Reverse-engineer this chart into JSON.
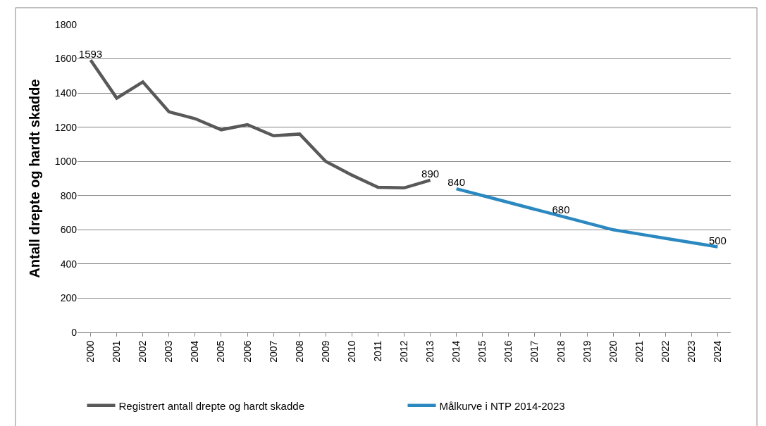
{
  "chart_data": {
    "type": "line",
    "ylabel": "Antall drepte og hardt skadde",
    "categories": [
      "2000",
      "2001",
      "2002",
      "2003",
      "2004",
      "2005",
      "2006",
      "2007",
      "2008",
      "2009",
      "2010",
      "2011",
      "2012",
      "2013",
      "2014",
      "2015",
      "2016",
      "2017",
      "2018",
      "2019",
      "2020",
      "2021",
      "2022",
      "2023",
      "2024"
    ],
    "series": [
      {
        "name": "Registrert antall drepte og hardt skadde",
        "color": "#595959",
        "values": [
          1593,
          1370,
          1465,
          1290,
          1250,
          1185,
          1215,
          1150,
          1160,
          1000,
          920,
          848,
          845,
          890,
          null,
          null,
          null,
          null,
          null,
          null,
          null,
          null,
          null,
          null,
          null
        ],
        "value_labels": [
          "1593",
          null,
          null,
          null,
          null,
          null,
          null,
          null,
          null,
          null,
          null,
          null,
          null,
          "890",
          null,
          null,
          null,
          null,
          null,
          null,
          null,
          null,
          null,
          null,
          null
        ]
      },
      {
        "name": "Målkurve i NTP 2014-2023",
        "color": "#2c88c0",
        "values": [
          null,
          null,
          null,
          null,
          null,
          null,
          null,
          null,
          null,
          null,
          null,
          null,
          null,
          null,
          840,
          800,
          760,
          720,
          680,
          640,
          600,
          575,
          550,
          525,
          500
        ],
        "value_labels": [
          null,
          null,
          null,
          null,
          null,
          null,
          null,
          null,
          null,
          null,
          null,
          null,
          null,
          null,
          "840",
          null,
          null,
          null,
          "680",
          null,
          null,
          null,
          null,
          null,
          "500"
        ]
      }
    ],
    "ylim": [
      0,
      1800
    ],
    "yticks": [
      0,
      200,
      400,
      600,
      800,
      1000,
      1200,
      1400,
      1600,
      1800
    ],
    "grid": "y",
    "legend": "bottom",
    "marker": "none",
    "line_style": "solid"
  }
}
